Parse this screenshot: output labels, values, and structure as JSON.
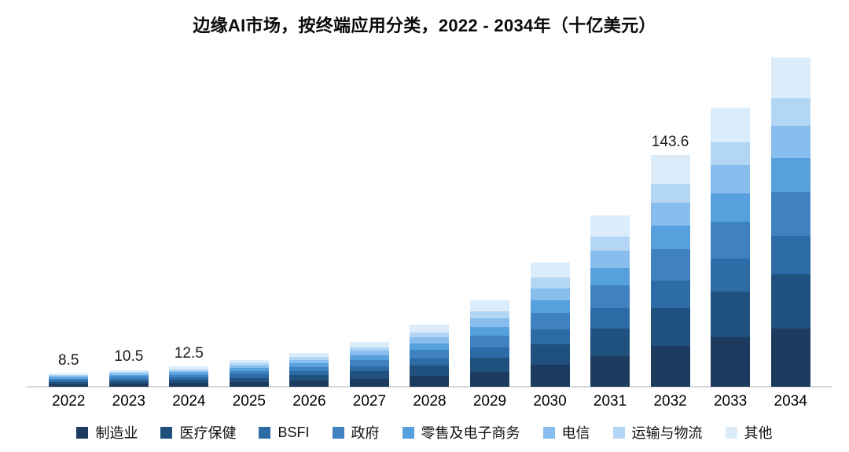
{
  "chart_data": {
    "type": "bar",
    "stacked": true,
    "title": "边缘AI市场，按终端应用分类，2022 - 2034年（十亿美元）",
    "unit": "十亿美元",
    "legend_position": "bottom",
    "grid": false,
    "background_color": "#ffffff",
    "axis_line_color": "#d9d9d9",
    "ylim": [
      0,
      210
    ],
    "categories": [
      "2022",
      "2023",
      "2024",
      "2025",
      "2026",
      "2027",
      "2028",
      "2029",
      "2030",
      "2031",
      "2032",
      "2033",
      "2034"
    ],
    "totals": [
      8.5,
      10.5,
      12.5,
      16.5,
      21.0,
      28.0,
      38.5,
      53.5,
      77.0,
      106.0,
      143.6,
      173.0,
      204.0
    ],
    "value_labels": [
      "8.5",
      "10.5",
      "12.5",
      "",
      "",
      "",
      "",
      "",
      "",
      "",
      "143.6",
      "",
      ""
    ],
    "series": [
      {
        "name": "制造业",
        "color": "#1c3b5e",
        "values": [
          1.5,
          1.9,
          2.2,
          2.9,
          3.7,
          5.0,
          6.8,
          9.5,
          13.6,
          18.8,
          25.4,
          30.6,
          36.1
        ]
      },
      {
        "name": "医疗保健",
        "color": "#20507e",
        "values": [
          1.4,
          1.7,
          2.0,
          2.7,
          3.4,
          4.6,
          6.3,
          8.7,
          12.6,
          17.3,
          23.4,
          28.2,
          33.3
        ]
      },
      {
        "name": "BSFI",
        "color": "#2c6ba5",
        "values": [
          1.0,
          1.2,
          1.5,
          2.0,
          2.5,
          3.3,
          4.6,
          6.4,
          9.2,
          12.6,
          17.1,
          20.6,
          24.3
        ]
      },
      {
        "name": "政府",
        "color": "#3f81c1",
        "values": [
          1.1,
          1.4,
          1.7,
          2.2,
          2.8,
          3.7,
          5.1,
          7.1,
          10.2,
          14.1,
          19.1,
          23.0,
          27.1
        ]
      },
      {
        "name": "零售及电子商务",
        "color": "#57a0de",
        "values": [
          0.9,
          1.1,
          1.3,
          1.7,
          2.1,
          2.9,
          3.9,
          5.5,
          7.9,
          10.8,
          14.6,
          17.6,
          20.8
        ]
      },
      {
        "name": "电信",
        "color": "#87beee",
        "values": [
          0.8,
          1.0,
          1.2,
          1.6,
          2.1,
          2.8,
          3.8,
          5.3,
          7.6,
          10.5,
          14.2,
          17.1,
          20.2
        ]
      },
      {
        "name": "运输与物流",
        "color": "#b2d6f4",
        "values": [
          0.7,
          0.9,
          1.0,
          1.4,
          1.7,
          2.3,
          3.2,
          4.4,
          6.4,
          8.8,
          11.9,
          14.4,
          16.9
        ]
      },
      {
        "name": "其他",
        "color": "#dbecfa",
        "values": [
          1.1,
          1.3,
          1.6,
          2.0,
          2.7,
          3.4,
          4.8,
          6.6,
          9.5,
          13.1,
          17.9,
          21.5,
          25.3
        ]
      }
    ]
  }
}
